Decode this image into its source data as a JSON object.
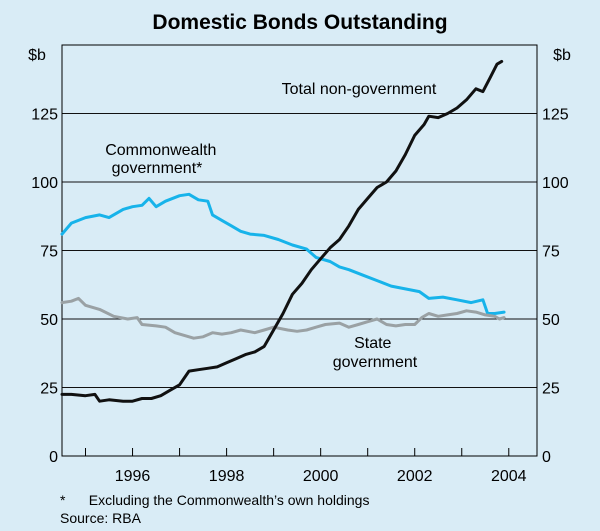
{
  "chart_data": {
    "type": "line",
    "title": "Domestic Bonds Outstanding",
    "ylabel_left": "$b",
    "ylabel_right": "$b",
    "ylim": [
      0,
      150
    ],
    "yticks": [
      0,
      25,
      50,
      75,
      100,
      125
    ],
    "xlim": [
      1994.5,
      2004.6
    ],
    "xticks": [
      1996,
      1998,
      2000,
      2002,
      2004
    ],
    "grid": true,
    "footnote": "*      Excluding the Commonwealth’s own holdings",
    "source": "Source: RBA",
    "series": [
      {
        "name": "Commonwealth government*",
        "label_lines": [
          "Commonwealth",
          "government*"
        ],
        "color": "#17b3ea",
        "points": [
          [
            1994.5,
            81
          ],
          [
            1994.7,
            85
          ],
          [
            1995.0,
            87
          ],
          [
            1995.3,
            88
          ],
          [
            1995.5,
            87
          ],
          [
            1995.8,
            90
          ],
          [
            1996.0,
            91
          ],
          [
            1996.2,
            91.5
          ],
          [
            1996.35,
            94
          ],
          [
            1996.5,
            91
          ],
          [
            1996.7,
            93
          ],
          [
            1997.0,
            95
          ],
          [
            1997.2,
            95.5
          ],
          [
            1997.4,
            93.5
          ],
          [
            1997.6,
            93
          ],
          [
            1997.7,
            88
          ],
          [
            1997.9,
            86
          ],
          [
            1998.1,
            84
          ],
          [
            1998.3,
            82
          ],
          [
            1998.5,
            81
          ],
          [
            1998.8,
            80.5
          ],
          [
            1999.1,
            79
          ],
          [
            1999.4,
            77
          ],
          [
            1999.7,
            75.5
          ],
          [
            1999.9,
            72.5
          ],
          [
            2000.2,
            71
          ],
          [
            2000.4,
            69
          ],
          [
            2000.6,
            68
          ],
          [
            2000.9,
            66
          ],
          [
            2001.2,
            64
          ],
          [
            2001.5,
            62
          ],
          [
            2001.8,
            61
          ],
          [
            2002.1,
            60
          ],
          [
            2002.3,
            57.5
          ],
          [
            2002.6,
            58
          ],
          [
            2002.9,
            57
          ],
          [
            2003.2,
            56
          ],
          [
            2003.45,
            57
          ],
          [
            2003.55,
            52
          ],
          [
            2003.7,
            52
          ],
          [
            2003.9,
            52.5
          ]
        ]
      },
      {
        "name": "State government",
        "label_lines": [
          "State",
          "government"
        ],
        "color": "#9aa1a4",
        "points": [
          [
            1994.5,
            56
          ],
          [
            1994.7,
            56.5
          ],
          [
            1994.85,
            57.5
          ],
          [
            1995.0,
            55
          ],
          [
            1995.3,
            53.5
          ],
          [
            1995.6,
            51
          ],
          [
            1995.9,
            50
          ],
          [
            1996.1,
            50.5
          ],
          [
            1996.2,
            48
          ],
          [
            1996.5,
            47.5
          ],
          [
            1996.7,
            47
          ],
          [
            1996.9,
            45
          ],
          [
            1997.1,
            44
          ],
          [
            1997.3,
            43
          ],
          [
            1997.5,
            43.5
          ],
          [
            1997.7,
            45
          ],
          [
            1997.9,
            44.5
          ],
          [
            1998.1,
            45
          ],
          [
            1998.3,
            46
          ],
          [
            1998.6,
            45
          ],
          [
            1998.8,
            46
          ],
          [
            1999.0,
            47
          ],
          [
            1999.3,
            46
          ],
          [
            1999.5,
            45.5
          ],
          [
            1999.7,
            46
          ],
          [
            1999.9,
            47
          ],
          [
            2000.1,
            48
          ],
          [
            2000.4,
            48.5
          ],
          [
            2000.6,
            47
          ],
          [
            2000.8,
            48
          ],
          [
            2001.0,
            49
          ],
          [
            2001.2,
            50
          ],
          [
            2001.4,
            48
          ],
          [
            2001.6,
            47.5
          ],
          [
            2001.8,
            48
          ],
          [
            2002.0,
            48
          ],
          [
            2002.15,
            50.5
          ],
          [
            2002.3,
            52
          ],
          [
            2002.5,
            51
          ],
          [
            2002.7,
            51.5
          ],
          [
            2002.9,
            52
          ],
          [
            2003.1,
            53
          ],
          [
            2003.3,
            52.5
          ],
          [
            2003.5,
            51.5
          ],
          [
            2003.7,
            51
          ],
          [
            2003.8,
            50
          ],
          [
            2003.9,
            50.5
          ]
        ]
      },
      {
        "name": "Total non-government",
        "label_lines": [
          "Total non-government"
        ],
        "color": "#111111",
        "points": [
          [
            1994.5,
            22.5
          ],
          [
            1994.7,
            22.5
          ],
          [
            1995.0,
            22
          ],
          [
            1995.2,
            22.5
          ],
          [
            1995.3,
            20
          ],
          [
            1995.5,
            20.5
          ],
          [
            1995.8,
            20
          ],
          [
            1996.0,
            20
          ],
          [
            1996.2,
            21
          ],
          [
            1996.4,
            21
          ],
          [
            1996.6,
            22
          ],
          [
            1996.8,
            24
          ],
          [
            1997.0,
            26
          ],
          [
            1997.2,
            31
          ],
          [
            1997.4,
            31.5
          ],
          [
            1997.6,
            32
          ],
          [
            1997.8,
            32.5
          ],
          [
            1998.0,
            34
          ],
          [
            1998.2,
            35.5
          ],
          [
            1998.4,
            37
          ],
          [
            1998.6,
            38
          ],
          [
            1998.8,
            40
          ],
          [
            1999.0,
            46
          ],
          [
            1999.2,
            52
          ],
          [
            1999.4,
            59
          ],
          [
            1999.6,
            63
          ],
          [
            1999.8,
            68
          ],
          [
            2000.0,
            72
          ],
          [
            2000.2,
            76
          ],
          [
            2000.4,
            79
          ],
          [
            2000.6,
            84
          ],
          [
            2000.8,
            90
          ],
          [
            2001.0,
            94
          ],
          [
            2001.2,
            98
          ],
          [
            2001.4,
            100
          ],
          [
            2001.6,
            104
          ],
          [
            2001.8,
            110
          ],
          [
            2002.0,
            117
          ],
          [
            2002.2,
            121
          ],
          [
            2002.3,
            124
          ],
          [
            2002.5,
            123.5
          ],
          [
            2002.7,
            125
          ],
          [
            2002.9,
            127
          ],
          [
            2003.1,
            130
          ],
          [
            2003.3,
            134
          ],
          [
            2003.45,
            133
          ],
          [
            2003.6,
            138
          ],
          [
            2003.75,
            143
          ],
          [
            2003.85,
            144
          ]
        ]
      }
    ]
  }
}
